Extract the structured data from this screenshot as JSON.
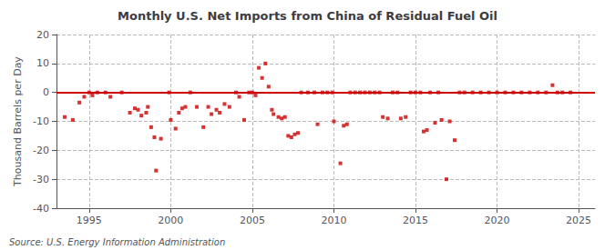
{
  "chart_data": {
    "type": "scatter",
    "title": "Monthly U.S. Net Imports from China of Residual Fuel Oil",
    "ylabel": "Thousand Barrels per Day",
    "source": "Source: U.S. Energy Information Administration",
    "color": "#cc0000",
    "marker": "square",
    "hline": {
      "y": 0,
      "color": "#cc0000"
    },
    "xlim": [
      1993.0,
      2026.0
    ],
    "ylim": [
      -40,
      20
    ],
    "xticks": [
      1995,
      2000,
      2005,
      2010,
      2015,
      2020,
      2025
    ],
    "yticks": [
      -40,
      -30,
      -20,
      -10,
      0,
      10,
      20
    ],
    "grid": true,
    "x": [
      1993.5,
      1994.0,
      1994.4,
      1994.7,
      1995.0,
      1995.2,
      1995.5,
      1996.0,
      1996.3,
      1997.0,
      1997.5,
      1997.8,
      1998.0,
      1998.2,
      1998.5,
      1998.6,
      1998.8,
      1999.0,
      1999.1,
      1999.4,
      1999.9,
      2000.0,
      2000.3,
      2000.5,
      2000.7,
      2000.9,
      2001.2,
      2001.6,
      2002.0,
      2002.3,
      2002.5,
      2002.8,
      2003.0,
      2003.3,
      2003.6,
      2004.0,
      2004.2,
      2004.5,
      2004.8,
      2005.0,
      2005.2,
      2005.4,
      2005.6,
      2005.8,
      2006.0,
      2006.2,
      2006.3,
      2006.6,
      2006.8,
      2007.0,
      2007.2,
      2007.4,
      2007.6,
      2007.8,
      2008.0,
      2008.4,
      2008.8,
      2009.0,
      2009.3,
      2009.6,
      2009.9,
      2010.0,
      2010.4,
      2010.6,
      2010.8,
      2011.0,
      2011.3,
      2011.6,
      2011.9,
      2012.2,
      2012.5,
      2012.8,
      2013.0,
      2013.3,
      2013.6,
      2013.9,
      2014.1,
      2014.4,
      2014.7,
      2015.0,
      2015.3,
      2015.5,
      2015.7,
      2015.9,
      2016.2,
      2016.4,
      2016.6,
      2016.9,
      2017.1,
      2017.4,
      2017.7,
      2018.0,
      2018.5,
      2019.0,
      2019.5,
      2020.0,
      2020.5,
      2021.0,
      2021.5,
      2022.0,
      2022.5,
      2023.0,
      2023.4,
      2023.7,
      2024.0,
      2024.5
    ],
    "values": [
      -8.5,
      -9.5,
      -3.5,
      -1.5,
      0.0,
      -1.0,
      0.0,
      0.0,
      -1.5,
      0.0,
      -7.0,
      -5.5,
      -6.0,
      -8.0,
      -7.0,
      -5.0,
      -12.0,
      -15.5,
      -27.0,
      -16.0,
      0.0,
      -9.5,
      -12.5,
      -7.0,
      -5.5,
      -5.0,
      0.0,
      -5.0,
      -12.0,
      -5.0,
      -7.5,
      -6.0,
      -7.0,
      -4.0,
      -5.0,
      0.0,
      -1.5,
      -9.5,
      0.0,
      0.0,
      -1.0,
      8.5,
      5.0,
      10.0,
      2.0,
      -6.0,
      -7.5,
      -8.5,
      -9.0,
      -8.5,
      -15.0,
      -15.5,
      -14.5,
      -14.0,
      0.0,
      0.0,
      0.0,
      -11.0,
      0.0,
      0.0,
      0.0,
      -10.0,
      -24.5,
      -11.5,
      -11.0,
      0.0,
      0.0,
      0.0,
      0.0,
      0.0,
      0.0,
      0.0,
      -8.5,
      -9.0,
      0.0,
      0.0,
      -9.0,
      -8.5,
      0.0,
      0.0,
      0.0,
      -13.5,
      -13.0,
      0.0,
      -10.5,
      0.0,
      -9.5,
      -30.0,
      -10.0,
      -16.5,
      0.0,
      0.0,
      0.0,
      0.0,
      0.0,
      0.0,
      0.0,
      0.0,
      0.0,
      0.0,
      0.0,
      0.0,
      2.5,
      0.0,
      0.0,
      0.0
    ]
  }
}
